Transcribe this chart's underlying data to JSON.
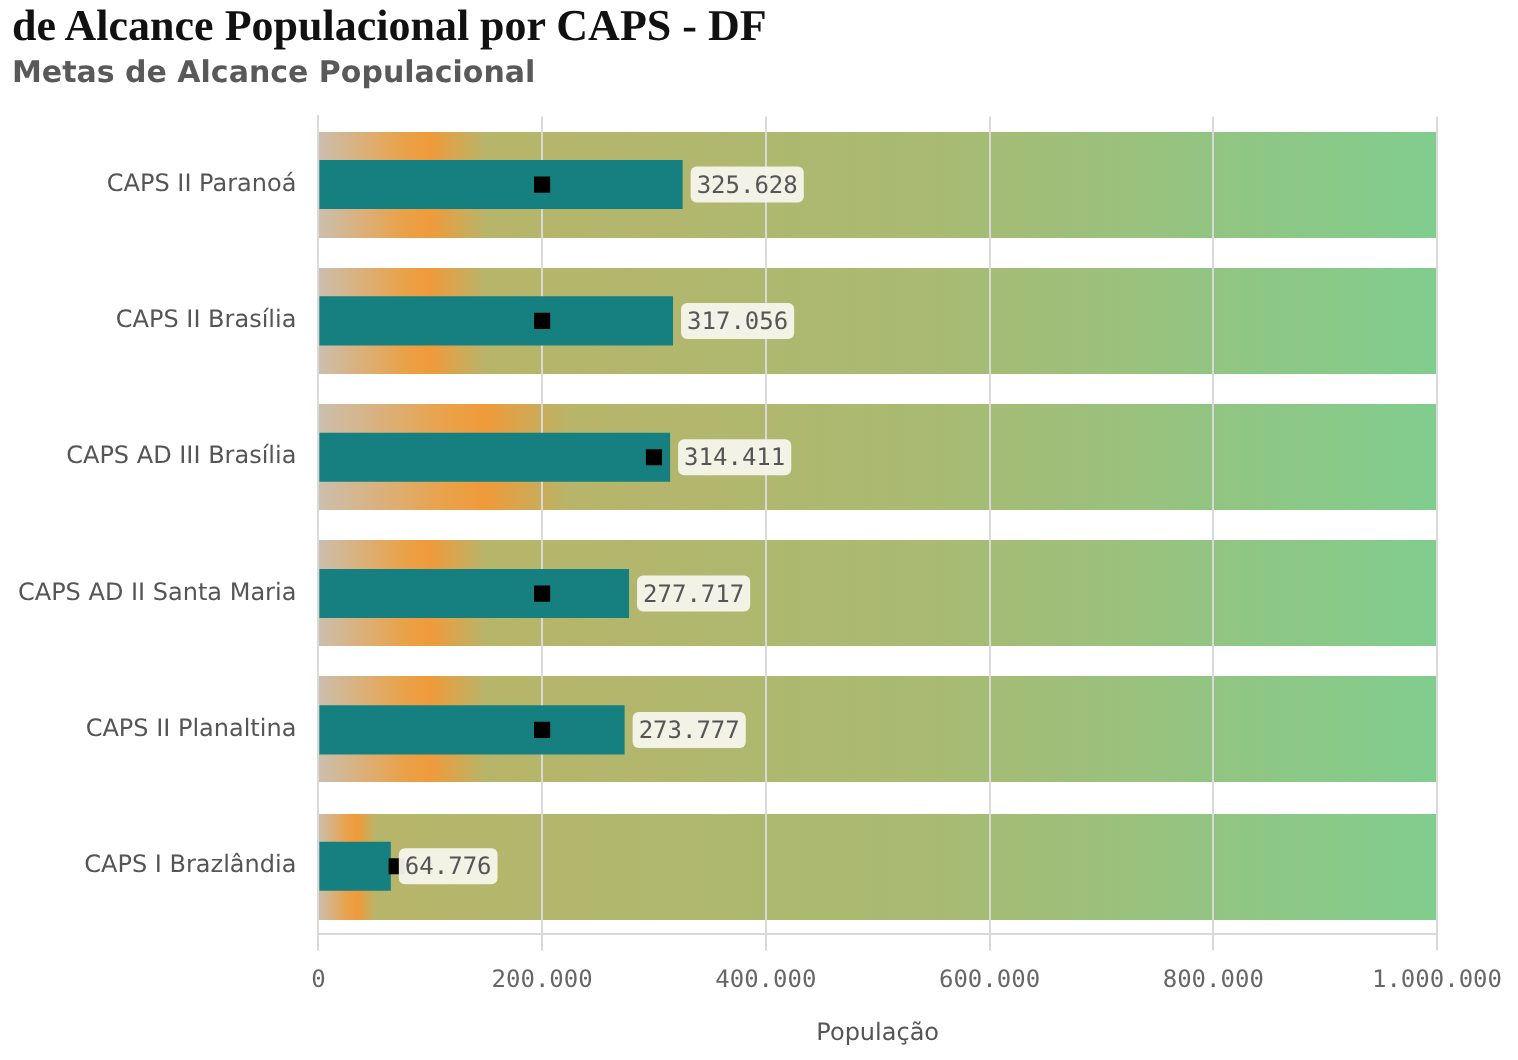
{
  "chart_data": {
    "type": "bar",
    "title": "de Alcance Populacional por CAPS - DF",
    "subtitle": "Metas de Alcance Populacional",
    "xlabel": "População",
    "orientation": "horizontal",
    "categories": [
      "CAPS II Paranoá",
      "CAPS II Brasília",
      "CAPS AD III Brasília",
      "CAPS AD II Santa Maria",
      "CAPS II Planaltina",
      "CAPS I Brazlândia"
    ],
    "series": [
      {
        "type": "bar",
        "color": "#167f80",
        "values": [
          325628,
          317056,
          314411,
          277717,
          273777,
          64776
        ],
        "value_labels": [
          "325.628",
          "317.056",
          "314.411",
          "277.717",
          "273.777",
          "64.776"
        ]
      },
      {
        "type": "scatter",
        "color": "#000000",
        "values": [
          200000,
          200000,
          300000,
          200000,
          200000,
          70000
        ]
      }
    ],
    "xlim": [
      0,
      1000000
    ],
    "xticks": [
      0,
      {
        "value": 200000,
        "label": "200.000"
      },
      {
        "value": 400000,
        "label": "400.000"
      },
      {
        "value": 600000,
        "label": "600.000"
      },
      {
        "value": 800000,
        "label": "800.000"
      },
      {
        "value": 1000000,
        "label": "1.000.000"
      }
    ],
    "grid": "x",
    "marker": "square"
  }
}
